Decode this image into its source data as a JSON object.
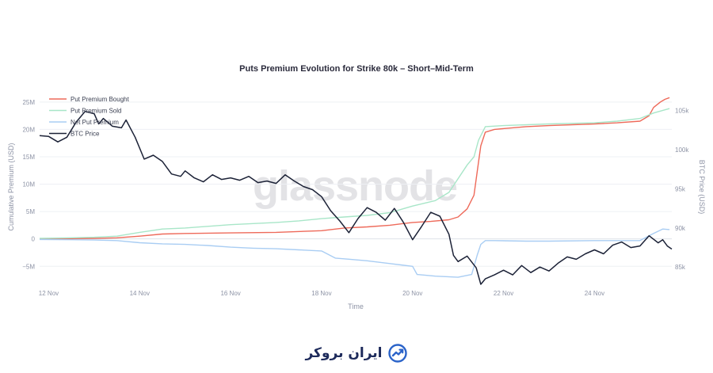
{
  "chart_data": {
    "type": "line",
    "title": "Puts Premium Evolution for Strike 80k – Short–Mid-Term",
    "xlabel": "Time",
    "ylabel": "Cumulative Premium (USD)",
    "y2label": "BTC Price (USD)",
    "x_ticks": [
      "12 Nov",
      "14 Nov",
      "16 Nov",
      "18 Nov",
      "20 Nov",
      "22 Nov",
      "24 Nov"
    ],
    "x_range_days": [
      11.8,
      25.7
    ],
    "y_ticks": [
      {
        "value": -5000000,
        "label": "−5M"
      },
      {
        "value": 0,
        "label": "0"
      },
      {
        "value": 5000000,
        "label": "5M"
      },
      {
        "value": 10000000,
        "label": "10M"
      },
      {
        "value": 15000000,
        "label": "15M"
      },
      {
        "value": 20000000,
        "label": "20M"
      },
      {
        "value": 25000000,
        "label": "25M"
      }
    ],
    "ylim": [
      -8000000,
      27000000
    ],
    "y2_ticks": [
      {
        "value": 85000,
        "label": "85k"
      },
      {
        "value": 90000,
        "label": "90k"
      },
      {
        "value": 95000,
        "label": "95k"
      },
      {
        "value": 100000,
        "label": "100k"
      },
      {
        "value": 105000,
        "label": "105k"
      }
    ],
    "y2lim": [
      83000,
      107500
    ],
    "legend_position": "top-left",
    "watermark": "glassnode",
    "series": [
      {
        "name": "Put Premium Bought",
        "axis": "y",
        "color": "#ee6a5a",
        "points": [
          [
            11.8,
            0
          ],
          [
            12.5,
            50000
          ],
          [
            13.0,
            100000
          ],
          [
            13.5,
            200000
          ],
          [
            14.0,
            500000
          ],
          [
            14.5,
            900000
          ],
          [
            15.0,
            1000000
          ],
          [
            16.0,
            1100000
          ],
          [
            17.0,
            1200000
          ],
          [
            18.0,
            1500000
          ],
          [
            18.5,
            2000000
          ],
          [
            19.0,
            2200000
          ],
          [
            19.5,
            2500000
          ],
          [
            20.0,
            3000000
          ],
          [
            20.4,
            3200000
          ],
          [
            20.8,
            3500000
          ],
          [
            21.0,
            4000000
          ],
          [
            21.2,
            5500000
          ],
          [
            21.35,
            8000000
          ],
          [
            21.45,
            14000000
          ],
          [
            21.5,
            17000000
          ],
          [
            21.6,
            19500000
          ],
          [
            21.8,
            20000000
          ],
          [
            22.5,
            20500000
          ],
          [
            23.0,
            20700000
          ],
          [
            24.0,
            21000000
          ],
          [
            24.5,
            21200000
          ],
          [
            25.0,
            21500000
          ],
          [
            25.2,
            22500000
          ],
          [
            25.3,
            24000000
          ],
          [
            25.45,
            25000000
          ],
          [
            25.55,
            25500000
          ],
          [
            25.65,
            25800000
          ]
        ]
      },
      {
        "name": "Put Premium Sold",
        "axis": "y",
        "color": "#a8e6c8",
        "points": [
          [
            11.8,
            100000
          ],
          [
            12.5,
            200000
          ],
          [
            13.0,
            300000
          ],
          [
            13.5,
            500000
          ],
          [
            14.0,
            1200000
          ],
          [
            14.5,
            1800000
          ],
          [
            15.0,
            2000000
          ],
          [
            15.5,
            2300000
          ],
          [
            16.0,
            2600000
          ],
          [
            16.5,
            2800000
          ],
          [
            17.0,
            3000000
          ],
          [
            17.5,
            3300000
          ],
          [
            18.0,
            3700000
          ],
          [
            18.5,
            4000000
          ],
          [
            19.0,
            4300000
          ],
          [
            19.5,
            4800000
          ],
          [
            20.0,
            6000000
          ],
          [
            20.5,
            7000000
          ],
          [
            20.8,
            8500000
          ],
          [
            21.0,
            11000000
          ],
          [
            21.2,
            13500000
          ],
          [
            21.35,
            15000000
          ],
          [
            21.45,
            18000000
          ],
          [
            21.6,
            20500000
          ],
          [
            22.0,
            20700000
          ],
          [
            23.0,
            21000000
          ],
          [
            24.0,
            21200000
          ],
          [
            24.5,
            21500000
          ],
          [
            25.0,
            22000000
          ],
          [
            25.3,
            23000000
          ],
          [
            25.65,
            23800000
          ]
        ]
      },
      {
        "name": "Net Put Premium",
        "axis": "y",
        "color": "#a9cdf3",
        "points": [
          [
            11.8,
            -100000
          ],
          [
            12.5,
            -150000
          ],
          [
            13.0,
            -200000
          ],
          [
            13.5,
            -300000
          ],
          [
            14.0,
            -700000
          ],
          [
            14.5,
            -900000
          ],
          [
            15.0,
            -1000000
          ],
          [
            15.5,
            -1200000
          ],
          [
            16.0,
            -1500000
          ],
          [
            16.5,
            -1700000
          ],
          [
            17.0,
            -1800000
          ],
          [
            17.5,
            -2000000
          ],
          [
            18.0,
            -2200000
          ],
          [
            18.3,
            -3500000
          ],
          [
            18.6,
            -3700000
          ],
          [
            19.0,
            -4000000
          ],
          [
            19.5,
            -4500000
          ],
          [
            20.0,
            -5000000
          ],
          [
            20.1,
            -6500000
          ],
          [
            20.5,
            -6800000
          ],
          [
            21.0,
            -7000000
          ],
          [
            21.3,
            -6500000
          ],
          [
            21.42,
            -3000000
          ],
          [
            21.5,
            -1000000
          ],
          [
            21.6,
            -300000
          ],
          [
            21.8,
            -300000
          ],
          [
            22.5,
            -400000
          ],
          [
            23.0,
            -400000
          ],
          [
            24.0,
            -300000
          ],
          [
            24.5,
            -300000
          ],
          [
            25.0,
            -300000
          ],
          [
            25.3,
            1000000
          ],
          [
            25.5,
            1800000
          ],
          [
            25.65,
            1700000
          ]
        ]
      },
      {
        "name": "BTC Price",
        "axis": "y2",
        "color": "#1c2237",
        "points": [
          [
            11.8,
            101800
          ],
          [
            12.0,
            101700
          ],
          [
            12.2,
            101000
          ],
          [
            12.4,
            101600
          ],
          [
            12.6,
            103500
          ],
          [
            12.8,
            104900
          ],
          [
            13.0,
            104600
          ],
          [
            13.1,
            103300
          ],
          [
            13.2,
            104000
          ],
          [
            13.4,
            103000
          ],
          [
            13.6,
            102800
          ],
          [
            13.7,
            103800
          ],
          [
            13.9,
            101600
          ],
          [
            14.1,
            98800
          ],
          [
            14.3,
            99300
          ],
          [
            14.5,
            98500
          ],
          [
            14.7,
            96900
          ],
          [
            14.9,
            96600
          ],
          [
            15.0,
            97300
          ],
          [
            15.2,
            96400
          ],
          [
            15.4,
            95900
          ],
          [
            15.6,
            96800
          ],
          [
            15.8,
            96200
          ],
          [
            16.0,
            96400
          ],
          [
            16.2,
            96100
          ],
          [
            16.4,
            96600
          ],
          [
            16.6,
            95800
          ],
          [
            16.8,
            96000
          ],
          [
            17.0,
            95700
          ],
          [
            17.2,
            96800
          ],
          [
            17.4,
            96000
          ],
          [
            17.6,
            95300
          ],
          [
            17.8,
            94900
          ],
          [
            18.0,
            94000
          ],
          [
            18.2,
            92200
          ],
          [
            18.4,
            90900
          ],
          [
            18.6,
            89400
          ],
          [
            18.8,
            91200
          ],
          [
            19.0,
            92600
          ],
          [
            19.2,
            92000
          ],
          [
            19.4,
            91000
          ],
          [
            19.6,
            92500
          ],
          [
            19.8,
            90700
          ],
          [
            20.0,
            88500
          ],
          [
            20.2,
            90200
          ],
          [
            20.4,
            92000
          ],
          [
            20.6,
            91500
          ],
          [
            20.8,
            89200
          ],
          [
            20.9,
            86500
          ],
          [
            21.0,
            85700
          ],
          [
            21.2,
            86400
          ],
          [
            21.4,
            84900
          ],
          [
            21.5,
            82800
          ],
          [
            21.6,
            83500
          ],
          [
            21.8,
            84000
          ],
          [
            22.0,
            84600
          ],
          [
            22.2,
            84000
          ],
          [
            22.4,
            85200
          ],
          [
            22.6,
            84300
          ],
          [
            22.8,
            85000
          ],
          [
            23.0,
            84500
          ],
          [
            23.2,
            85500
          ],
          [
            23.4,
            86300
          ],
          [
            23.6,
            86000
          ],
          [
            23.8,
            86700
          ],
          [
            24.0,
            87200
          ],
          [
            24.2,
            86700
          ],
          [
            24.4,
            87800
          ],
          [
            24.6,
            88200
          ],
          [
            24.8,
            87500
          ],
          [
            25.0,
            87700
          ],
          [
            25.2,
            89000
          ],
          [
            25.4,
            88100
          ],
          [
            25.5,
            88500
          ],
          [
            25.6,
            87700
          ],
          [
            25.7,
            87300
          ]
        ]
      }
    ]
  },
  "footer": {
    "brand_text": "ایران بروکر"
  }
}
